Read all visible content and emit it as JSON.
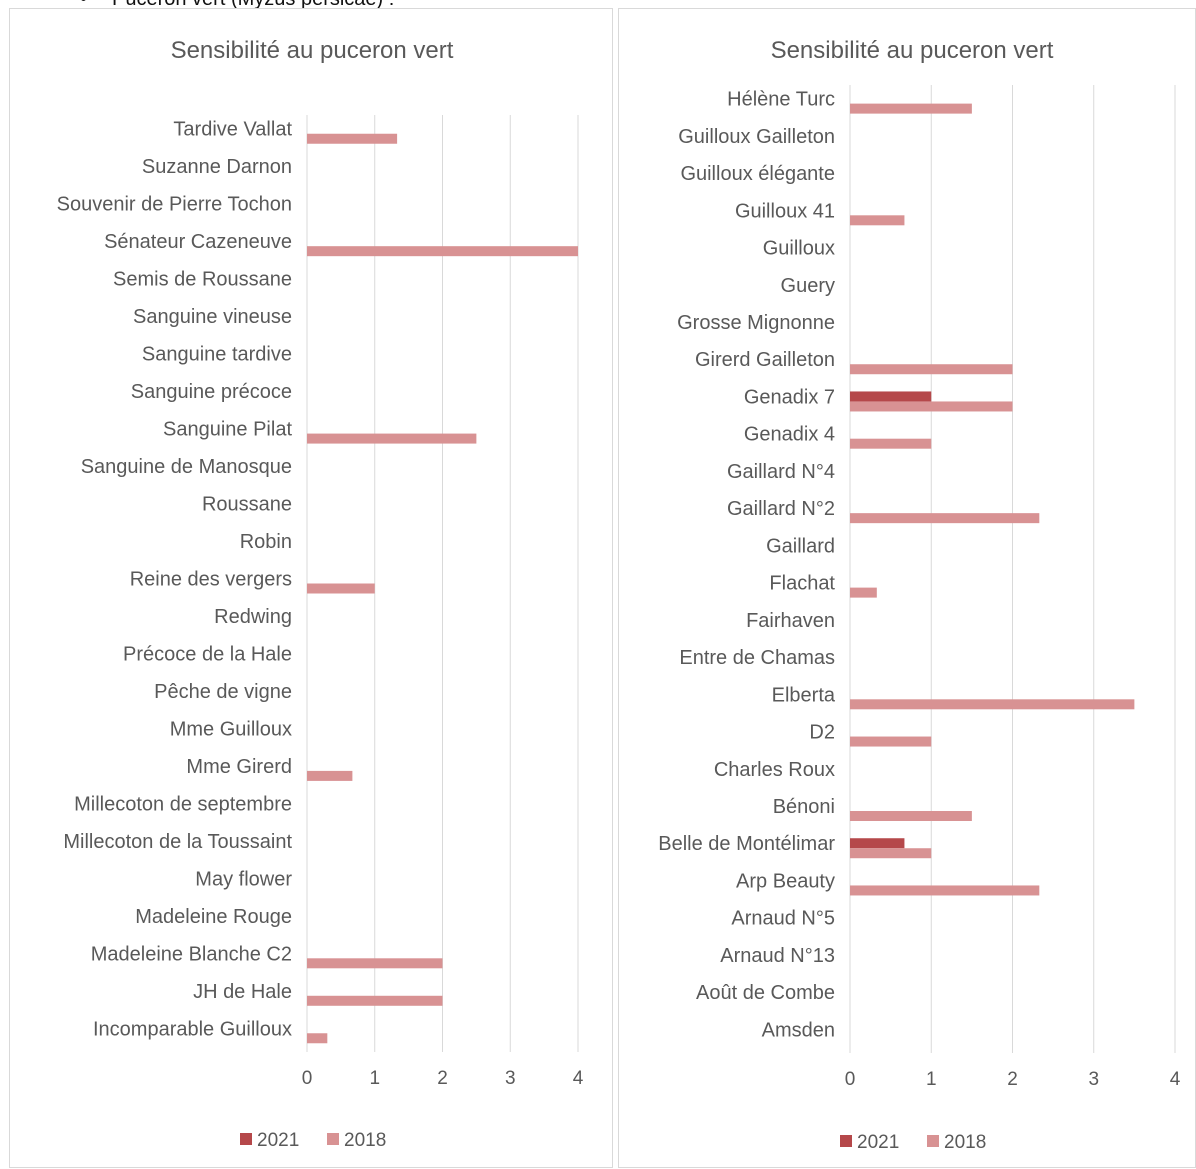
{
  "page_header": {
    "bullet": "•",
    "text": "Puceron vert (Myzus persicae) :"
  },
  "colors": {
    "series_2021": "#b5484a",
    "series_2018": "#d89293",
    "grid": "#d9d9d9",
    "text": "#595959"
  },
  "chart_data": [
    {
      "type": "bar",
      "orientation": "horizontal",
      "title": "Sensibilité au puceron vert",
      "xlim": [
        0,
        4
      ],
      "x_ticks": [
        "0",
        "1",
        "2",
        "3",
        "4"
      ],
      "grid": "vertical",
      "legend_position": "bottom",
      "legend": [
        "2021",
        "2018"
      ],
      "categories": [
        "Incomparable Guilloux",
        "JH de Hale",
        "Madeleine Blanche C2",
        "Madeleine Rouge",
        "May flower",
        "Millecoton de la Toussaint",
        "Millecoton de septembre",
        "Mme Girerd",
        "Mme Guilloux",
        "Pêche de vigne",
        "Précoce de la Hale",
        "Redwing",
        "Reine des vergers",
        "Robin",
        "Roussane",
        "Sanguine de Manosque",
        "Sanguine Pilat",
        "Sanguine précoce",
        "Sanguine tardive",
        "Sanguine vineuse",
        "Semis de Roussane",
        "Sénateur Cazeneuve",
        "Souvenir de Pierre Tochon",
        "Suzanne Darnon",
        "Tardive Vallat"
      ],
      "series": [
        {
          "name": "2021",
          "values": [
            null,
            null,
            null,
            null,
            null,
            null,
            null,
            null,
            null,
            null,
            null,
            null,
            null,
            null,
            null,
            null,
            null,
            null,
            null,
            null,
            null,
            null,
            null,
            null,
            null
          ]
        },
        {
          "name": "2018",
          "values": [
            0.3,
            2,
            2,
            null,
            null,
            null,
            null,
            0.67,
            null,
            null,
            null,
            null,
            1,
            null,
            null,
            null,
            2.5,
            null,
            null,
            null,
            null,
            4,
            null,
            null,
            1.33
          ]
        }
      ]
    },
    {
      "type": "bar",
      "orientation": "horizontal",
      "title": "Sensibilité au puceron vert",
      "xlim": [
        0,
        4
      ],
      "x_ticks": [
        "0",
        "1",
        "2",
        "3",
        "4"
      ],
      "grid": "vertical",
      "legend_position": "bottom",
      "legend": [
        "2021",
        "2018"
      ],
      "categories": [
        "Amsden",
        "Août de Combe",
        "Arnaud N°13",
        "Arnaud N°5",
        "Arp Beauty",
        "Belle de Montélimar",
        "Bénoni",
        "Charles Roux",
        "D2",
        "Elberta",
        "Entre de Chamas",
        "Fairhaven",
        "Flachat",
        "Gaillard",
        "Gaillard N°2",
        "Gaillard N°4",
        "Genadix 4",
        "Genadix 7",
        "Girerd Gailleton",
        "Grosse Mignonne",
        "Guery",
        "Guilloux",
        "Guilloux 41",
        "Guilloux élégante",
        "Guilloux Gailleton",
        "Hélène Turc"
      ],
      "series": [
        {
          "name": "2021",
          "values": [
            null,
            null,
            null,
            null,
            null,
            0.67,
            null,
            null,
            null,
            null,
            null,
            null,
            null,
            null,
            null,
            null,
            null,
            1,
            null,
            null,
            null,
            null,
            null,
            null,
            null,
            null
          ]
        },
        {
          "name": "2018",
          "values": [
            null,
            null,
            null,
            null,
            2.33,
            1,
            1.5,
            null,
            1,
            3.5,
            null,
            null,
            0.33,
            null,
            2.33,
            null,
            1,
            2,
            2,
            null,
            null,
            null,
            0.67,
            null,
            null,
            1.5
          ]
        }
      ]
    }
  ]
}
